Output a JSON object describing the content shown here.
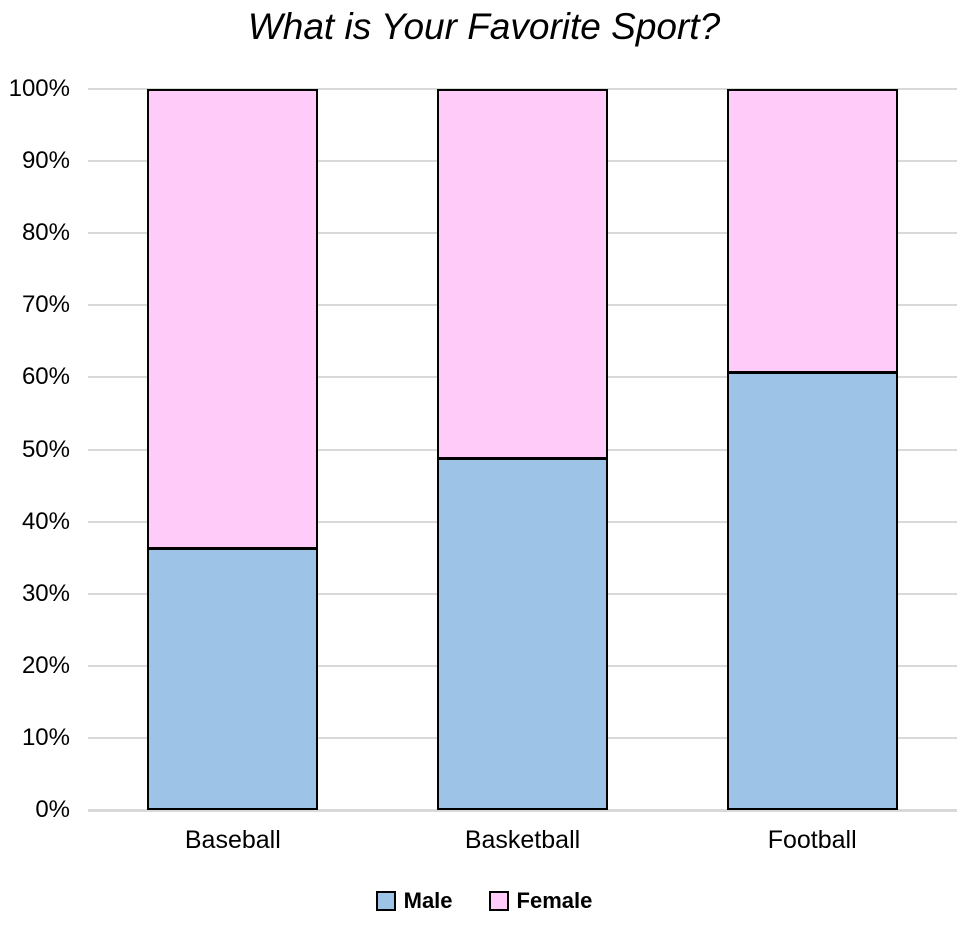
{
  "title": "What is Your Favorite Sport?",
  "colors": {
    "male_fill": "#9DC3E6",
    "female_fill": "#FFCCF9",
    "bar_border": "#000000",
    "gridline": "#D9D9D9",
    "axis_line": "#D9D9D9",
    "text": "#000000"
  },
  "chart_data": {
    "type": "bar",
    "subtype": "stacked-100-percent",
    "title": "What is Your Favorite Sport?",
    "categories": [
      "Baseball",
      "Basketball",
      "Football"
    ],
    "series": [
      {
        "name": "Male",
        "color": "#9DC3E6",
        "values": [
          36,
          48.5,
          60.5
        ]
      },
      {
        "name": "Female",
        "color": "#FFCCF9",
        "values": [
          64,
          51.5,
          39.5
        ]
      }
    ],
    "xlabel": "",
    "ylabel": "",
    "ylim": [
      0,
      100
    ],
    "ytick_step": 10,
    "ytick_labels": [
      "0%",
      "10%",
      "20%",
      "30%",
      "40%",
      "50%",
      "60%",
      "70%",
      "80%",
      "90%",
      "100%"
    ],
    "grid": true,
    "legend_position": "bottom",
    "legend_labels": [
      "Male",
      "Female"
    ]
  }
}
